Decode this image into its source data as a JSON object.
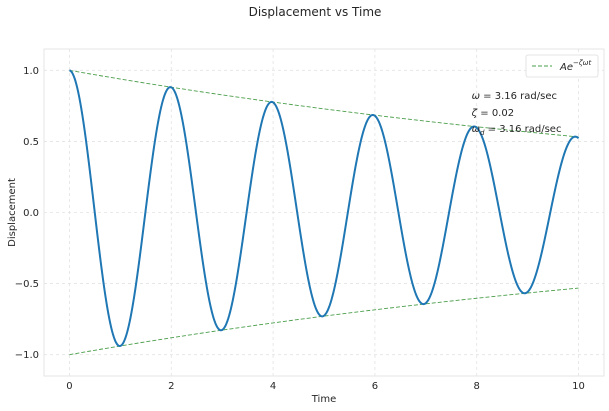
{
  "chart_data": {
    "type": "line",
    "title": "Displacement vs Time",
    "xlabel": "Time",
    "ylabel": "Displacement",
    "xlim": [
      -0.5,
      10.5
    ],
    "ylim": [
      -1.15,
      1.15
    ],
    "xticks": [
      0,
      2,
      4,
      6,
      8,
      10
    ],
    "xtick_labels": [
      "0",
      "2",
      "4",
      "6",
      "8",
      "10"
    ],
    "yticks": [
      -1.0,
      -0.5,
      0.0,
      0.5,
      1.0
    ],
    "ytick_labels": [
      "−1.0",
      "−0.5",
      "0.0",
      "0.5",
      "1.0"
    ],
    "grid": true,
    "legend_position": "upper right",
    "series": [
      {
        "name": "",
        "kind": "solid",
        "color": "#1f77b4",
        "function": "exp(-zeta*omega*t)*cos(omega_d*t)",
        "t_range": [
          0,
          10
        ]
      },
      {
        "name": "Ae^{-ζωt}",
        "kind": "dashed",
        "color": "#4a9e4a",
        "function": "±exp(-zeta*omega*t)",
        "t_range": [
          0,
          10
        ]
      }
    ],
    "parameters": {
      "omega": 3.16,
      "zeta": 0.02,
      "omega_d": 3.16
    },
    "legend": {
      "label_main": "Ae",
      "label_sup": "−ζωt"
    },
    "annotation": {
      "line1": {
        "sym": "ω",
        "sub": "",
        "text": " = 3.16 rad/sec"
      },
      "line2": {
        "sym": "ζ",
        "sub": "",
        "text": " = 0.02"
      },
      "line3": {
        "sym": "ω",
        "sub": "d",
        "text": " = 3.16 rad/sec"
      }
    }
  }
}
